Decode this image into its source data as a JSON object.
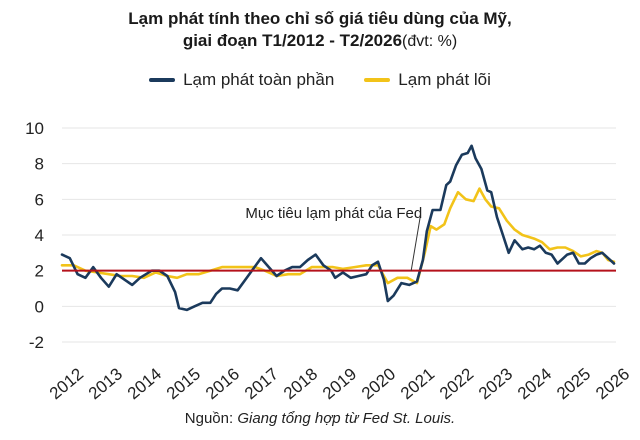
{
  "chart_data": {
    "type": "line",
    "title_line1": "Lạm phát tính theo chỉ số giá tiêu dùng của Mỹ,",
    "title_line2": "giai đoạn T1/2012 - T2/2026",
    "title_unit": "(đvt: %)",
    "ylim": [
      -2,
      10
    ],
    "yticks": [
      -2,
      0,
      2,
      4,
      6,
      8,
      10
    ],
    "xticks": [
      "2012",
      "2013",
      "2014",
      "2015",
      "2016",
      "2017",
      "2018",
      "2019",
      "2020",
      "2021",
      "2022",
      "2023",
      "2024",
      "2025",
      "2026"
    ],
    "target": {
      "value": 2,
      "label": "Mục tiêu lạm phát của Fed",
      "color": "#b5121b"
    },
    "series": [
      {
        "name": "Lạm phát toàn phần",
        "color": "#1b3a5c",
        "points": [
          [
            2012.0,
            2.9
          ],
          [
            2012.2,
            2.7
          ],
          [
            2012.4,
            1.8
          ],
          [
            2012.6,
            1.6
          ],
          [
            2012.8,
            2.2
          ],
          [
            2013.0,
            1.6
          ],
          [
            2013.2,
            1.1
          ],
          [
            2013.4,
            1.8
          ],
          [
            2013.6,
            1.5
          ],
          [
            2013.8,
            1.2
          ],
          [
            2014.0,
            1.6
          ],
          [
            2014.3,
            2.0
          ],
          [
            2014.5,
            2.0
          ],
          [
            2014.7,
            1.7
          ],
          [
            2014.9,
            0.8
          ],
          [
            2015.0,
            -0.1
          ],
          [
            2015.2,
            -0.2
          ],
          [
            2015.4,
            0.0
          ],
          [
            2015.6,
            0.2
          ],
          [
            2015.8,
            0.2
          ],
          [
            2015.95,
            0.7
          ],
          [
            2016.1,
            1.0
          ],
          [
            2016.3,
            1.0
          ],
          [
            2016.5,
            0.9
          ],
          [
            2016.7,
            1.5
          ],
          [
            2016.9,
            2.1
          ],
          [
            2017.1,
            2.7
          ],
          [
            2017.3,
            2.2
          ],
          [
            2017.5,
            1.7
          ],
          [
            2017.7,
            2.0
          ],
          [
            2017.9,
            2.2
          ],
          [
            2018.1,
            2.2
          ],
          [
            2018.3,
            2.6
          ],
          [
            2018.5,
            2.9
          ],
          [
            2018.7,
            2.3
          ],
          [
            2018.9,
            2.0
          ],
          [
            2019.0,
            1.6
          ],
          [
            2019.2,
            1.9
          ],
          [
            2019.4,
            1.6
          ],
          [
            2019.6,
            1.7
          ],
          [
            2019.8,
            1.8
          ],
          [
            2019.95,
            2.3
          ],
          [
            2020.1,
            2.5
          ],
          [
            2020.25,
            1.5
          ],
          [
            2020.35,
            0.3
          ],
          [
            2020.5,
            0.6
          ],
          [
            2020.7,
            1.3
          ],
          [
            2020.9,
            1.2
          ],
          [
            2021.1,
            1.4
          ],
          [
            2021.25,
            2.6
          ],
          [
            2021.35,
            4.2
          ],
          [
            2021.5,
            5.4
          ],
          [
            2021.7,
            5.4
          ],
          [
            2021.85,
            6.8
          ],
          [
            2021.95,
            7.0
          ],
          [
            2022.1,
            7.9
          ],
          [
            2022.25,
            8.5
          ],
          [
            2022.4,
            8.6
          ],
          [
            2022.5,
            9.0
          ],
          [
            2022.6,
            8.3
          ],
          [
            2022.75,
            7.7
          ],
          [
            2022.9,
            6.5
          ],
          [
            2023.0,
            6.4
          ],
          [
            2023.15,
            5.0
          ],
          [
            2023.3,
            4.0
          ],
          [
            2023.45,
            3.0
          ],
          [
            2023.6,
            3.7
          ],
          [
            2023.8,
            3.2
          ],
          [
            2023.95,
            3.3
          ],
          [
            2024.1,
            3.2
          ],
          [
            2024.25,
            3.4
          ],
          [
            2024.4,
            3.0
          ],
          [
            2024.55,
            2.9
          ],
          [
            2024.7,
            2.4
          ],
          [
            2024.85,
            2.7
          ],
          [
            2024.95,
            2.9
          ],
          [
            2025.1,
            3.0
          ],
          [
            2025.25,
            2.4
          ],
          [
            2025.4,
            2.4
          ],
          [
            2025.55,
            2.7
          ],
          [
            2025.7,
            2.9
          ],
          [
            2025.85,
            3.0
          ],
          [
            2026.0,
            2.7
          ],
          [
            2026.15,
            2.4
          ]
        ]
      },
      {
        "name": "Lạm phát lõi",
        "color": "#f2c319",
        "points": [
          [
            2012.0,
            2.3
          ],
          [
            2012.3,
            2.3
          ],
          [
            2012.6,
            2.0
          ],
          [
            2012.9,
            1.9
          ],
          [
            2013.2,
            1.8
          ],
          [
            2013.5,
            1.7
          ],
          [
            2013.8,
            1.7
          ],
          [
            2014.1,
            1.6
          ],
          [
            2014.4,
            1.9
          ],
          [
            2014.7,
            1.7
          ],
          [
            2014.95,
            1.6
          ],
          [
            2015.2,
            1.8
          ],
          [
            2015.5,
            1.8
          ],
          [
            2015.8,
            2.0
          ],
          [
            2016.1,
            2.2
          ],
          [
            2016.4,
            2.2
          ],
          [
            2016.7,
            2.2
          ],
          [
            2016.95,
            2.2
          ],
          [
            2017.2,
            2.0
          ],
          [
            2017.5,
            1.7
          ],
          [
            2017.8,
            1.8
          ],
          [
            2018.1,
            1.8
          ],
          [
            2018.4,
            2.2
          ],
          [
            2018.7,
            2.2
          ],
          [
            2018.95,
            2.2
          ],
          [
            2019.2,
            2.1
          ],
          [
            2019.5,
            2.2
          ],
          [
            2019.8,
            2.3
          ],
          [
            2020.1,
            2.3
          ],
          [
            2020.35,
            1.3
          ],
          [
            2020.6,
            1.6
          ],
          [
            2020.85,
            1.6
          ],
          [
            2021.1,
            1.3
          ],
          [
            2021.3,
            3.0
          ],
          [
            2021.45,
            4.5
          ],
          [
            2021.6,
            4.3
          ],
          [
            2021.8,
            4.6
          ],
          [
            2021.95,
            5.5
          ],
          [
            2022.15,
            6.4
          ],
          [
            2022.35,
            6.0
          ],
          [
            2022.55,
            5.9
          ],
          [
            2022.7,
            6.6
          ],
          [
            2022.85,
            6.0
          ],
          [
            2023.0,
            5.6
          ],
          [
            2023.2,
            5.5
          ],
          [
            2023.4,
            4.8
          ],
          [
            2023.6,
            4.3
          ],
          [
            2023.8,
            4.0
          ],
          [
            2023.95,
            3.9
          ],
          [
            2024.1,
            3.8
          ],
          [
            2024.3,
            3.6
          ],
          [
            2024.5,
            3.2
          ],
          [
            2024.7,
            3.3
          ],
          [
            2024.9,
            3.3
          ],
          [
            2025.1,
            3.1
          ],
          [
            2025.3,
            2.8
          ],
          [
            2025.5,
            2.9
          ],
          [
            2025.7,
            3.1
          ],
          [
            2025.85,
            3.0
          ],
          [
            2026.0,
            2.6
          ],
          [
            2026.15,
            2.5
          ]
        ]
      }
    ]
  },
  "source_prefix": "Nguồn:",
  "source_text": "Giang tổng hợp từ Fed St. Louis."
}
